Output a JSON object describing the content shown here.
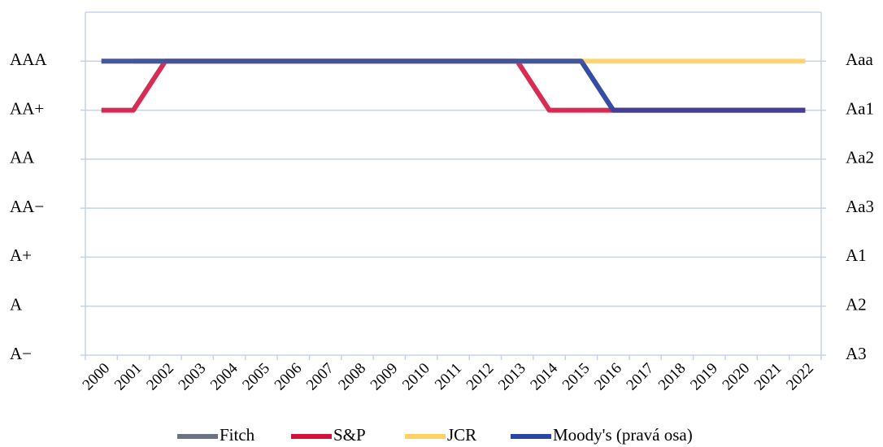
{
  "chart_data": {
    "type": "line",
    "categories": [
      "2000",
      "2001",
      "2002",
      "2003",
      "2004",
      "2005",
      "2006",
      "2007",
      "2008",
      "2009",
      "2010",
      "2011",
      "2012",
      "2013",
      "2014",
      "2015",
      "2016",
      "2017",
      "2018",
      "2019",
      "2020",
      "2021",
      "2022"
    ],
    "ylim": [
      0,
      7
    ],
    "yticks": [
      {
        "value": 0,
        "label": "A−"
      },
      {
        "value": 1,
        "label": "A"
      },
      {
        "value": 2,
        "label": "A+"
      },
      {
        "value": 3,
        "label": "AA−"
      },
      {
        "value": 4,
        "label": "AA"
      },
      {
        "value": 5,
        "label": "AA+"
      },
      {
        "value": 6,
        "label": "AAA"
      }
    ],
    "y2lim": [
      0,
      7
    ],
    "y2ticks": [
      {
        "value": 0,
        "label": "A3"
      },
      {
        "value": 1,
        "label": "A2"
      },
      {
        "value": 2,
        "label": "A1"
      },
      {
        "value": 3,
        "label": "Aa3"
      },
      {
        "value": 4,
        "label": "Aa2"
      },
      {
        "value": 5,
        "label": "Aa1"
      },
      {
        "value": 6,
        "label": "Aaa"
      }
    ],
    "grid": true,
    "legend": "bottom",
    "series": [
      {
        "name": "Fitch",
        "color": "#6b7280",
        "values": [
          null,
          6,
          6,
          6,
          6,
          6,
          6,
          6,
          6,
          6,
          6,
          6,
          6,
          6,
          6,
          6,
          5,
          5,
          5,
          5,
          5,
          5,
          5
        ]
      },
      {
        "name": "S&P",
        "color": "#d40f3a",
        "values": [
          5,
          5,
          6,
          6,
          6,
          6,
          6,
          6,
          6,
          6,
          6,
          6,
          6,
          6,
          5,
          5,
          5,
          5,
          5,
          5,
          5,
          5,
          5
        ]
      },
      {
        "name": "JCR",
        "color": "#fdd262",
        "values": [
          6,
          6,
          6,
          6,
          6,
          6,
          6,
          6,
          6,
          6,
          6,
          6,
          6,
          6,
          6,
          6,
          6,
          6,
          6,
          6,
          6,
          6,
          6
        ]
      },
      {
        "name": "Moody's (pravá osa)",
        "color": "#2a45a8",
        "axis": "y2",
        "values": [
          6,
          6,
          6,
          6,
          6,
          6,
          6,
          6,
          6,
          6,
          6,
          6,
          6,
          6,
          6,
          6,
          5,
          5,
          5,
          5,
          5,
          5,
          5
        ]
      }
    ]
  }
}
